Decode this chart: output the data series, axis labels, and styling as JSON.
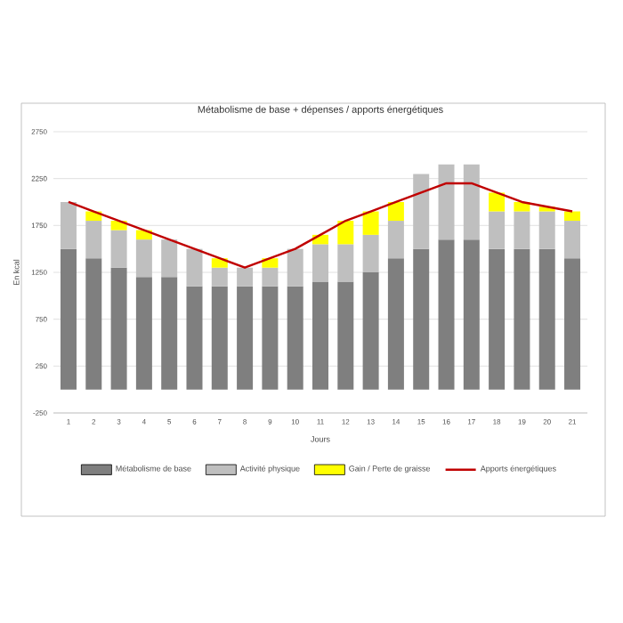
{
  "chart_data": {
    "type": "bar",
    "stacked": true,
    "title": "Métabolisme de base + dépenses / apports énergétiques",
    "xlabel": "Jours",
    "ylabel": "En kcal",
    "legend": "bottom",
    "grid": "y",
    "ylim": [
      -250,
      2750
    ],
    "yticks": [
      -250,
      250,
      750,
      1250,
      1750,
      2250,
      2750
    ],
    "categories": [
      "1",
      "2",
      "3",
      "4",
      "5",
      "6",
      "7",
      "8",
      "9",
      "10",
      "11",
      "12",
      "13",
      "14",
      "15",
      "16",
      "17",
      "18",
      "19",
      "20",
      "21"
    ],
    "series": [
      {
        "name": "Métabolisme de base",
        "color": "#7f7f7f",
        "values": [
          1500,
          1400,
          1300,
          1200,
          1200,
          1100,
          1100,
          1100,
          1100,
          1100,
          1150,
          1150,
          1250,
          1400,
          1500,
          1600,
          1600,
          1500,
          1500,
          1500,
          1400
        ]
      },
      {
        "name": "Activité physique",
        "color": "#bfbfbf",
        "values": [
          500,
          400,
          400,
          400,
          400,
          400,
          200,
          200,
          200,
          400,
          400,
          400,
          400,
          400,
          800,
          800,
          800,
          400,
          400,
          400,
          400
        ]
      },
      {
        "name": "Gain / Perte de graisse",
        "color": "#ffff00",
        "values": [
          0,
          100,
          100,
          100,
          0,
          0,
          100,
          0,
          100,
          0,
          100,
          250,
          250,
          200,
          0,
          0,
          0,
          200,
          100,
          50,
          100
        ]
      },
      {
        "name": "Apports énergétiques",
        "type": "line",
        "color": "#c00000",
        "values": [
          2000,
          1900,
          1800,
          1700,
          1600,
          1500,
          1400,
          1300,
          1400,
          1500,
          1650,
          1800,
          1900,
          2000,
          2100,
          2200,
          2200,
          2100,
          2000,
          1950,
          1900
        ]
      }
    ]
  }
}
